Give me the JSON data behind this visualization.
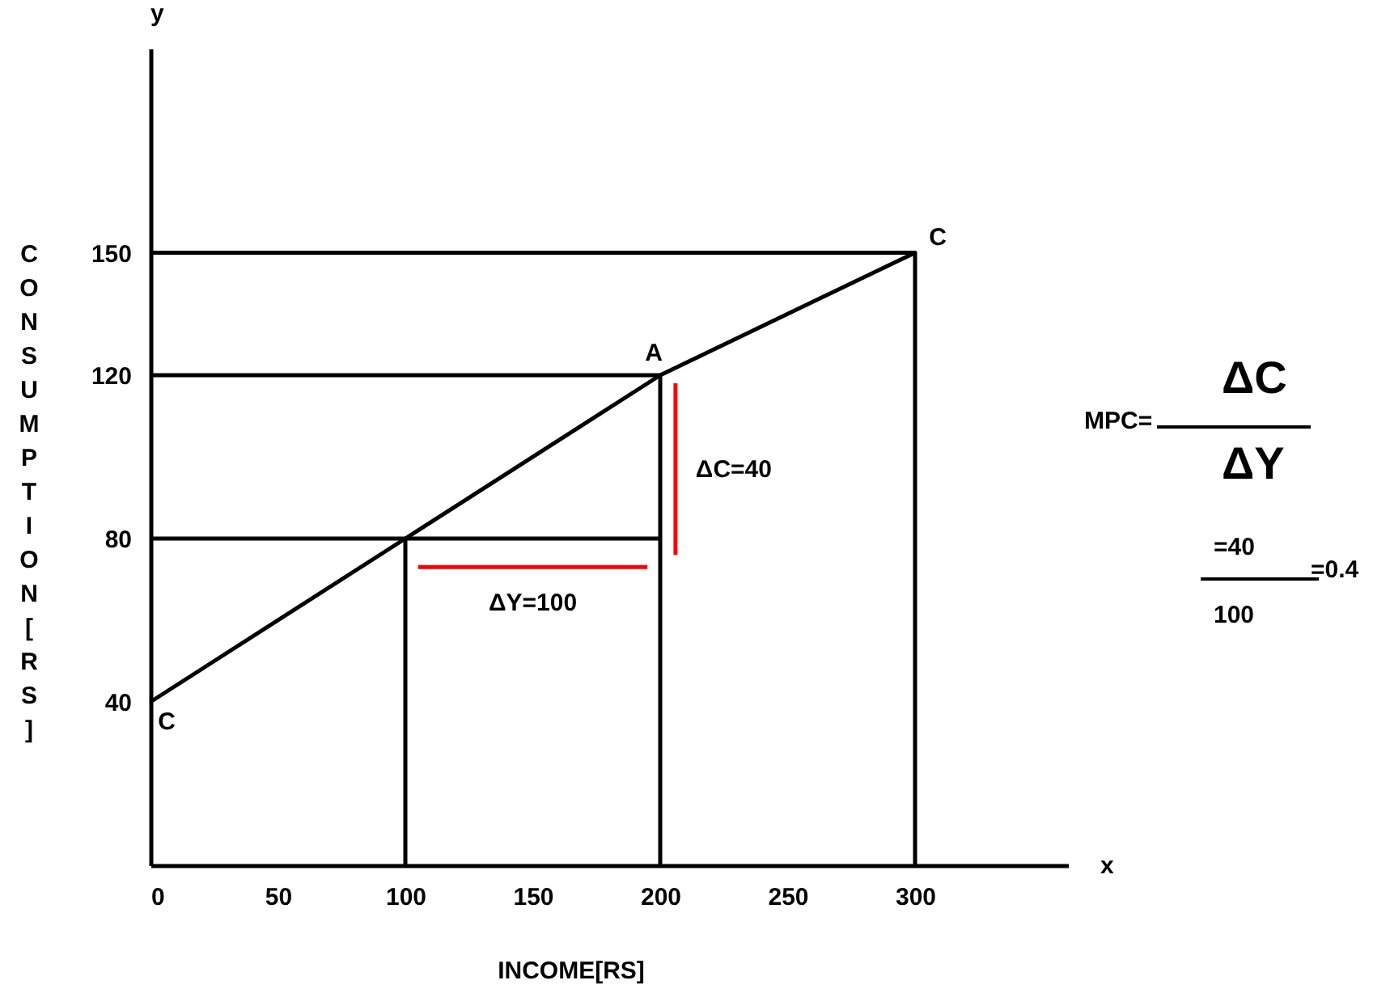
{
  "chart_data": {
    "type": "line",
    "xlabel": "INCOME[RS]",
    "ylabel": "CONSUMPTION[RS]",
    "xlim": [
      0,
      360
    ],
    "ylim": [
      0,
      200
    ],
    "xticks": [
      0,
      50,
      100,
      150,
      200,
      250,
      300
    ],
    "yticks": [
      40,
      80,
      120,
      150
    ],
    "grid": false,
    "marker": "none",
    "line_style": "solid",
    "series": [
      {
        "color": "#000000",
        "x": [
          0,
          100,
          200,
          300
        ],
        "values": [
          40,
          80,
          120,
          150
        ]
      },
      {
        "color": "#000000",
        "x": [
          0,
          300,
          300
        ],
        "values": [
          150,
          150,
          0
        ]
      },
      {
        "color": "#000000",
        "x": [
          0,
          200,
          200
        ],
        "values": [
          120,
          120,
          0
        ]
      },
      {
        "color": "#000000",
        "x": [
          0,
          100,
          100
        ],
        "values": [
          80,
          80,
          0
        ]
      },
      {
        "color": "#000000",
        "x": [
          100,
          200
        ],
        "values": [
          80,
          80
        ]
      },
      {
        "color": "#ff0000",
        "x": [
          105,
          195
        ],
        "values": [
          73,
          73
        ]
      },
      {
        "color": "#ff0000",
        "x": [
          206,
          206
        ],
        "values": [
          76,
          118
        ]
      }
    ],
    "annotations": [
      {
        "text": "C",
        "x": 300,
        "y": 150
      },
      {
        "text": "C",
        "x": 0,
        "y": 40
      },
      {
        "text": "A",
        "x": 200,
        "y": 120
      },
      {
        "text": "ΔY=100",
        "x": 150,
        "y": 73
      },
      {
        "text": "ΔC=40",
        "x": 206,
        "y": 97
      },
      "MPC=",
      "ΔC",
      "ΔY",
      "=40",
      "100",
      "=0.4",
      "x",
      "y"
    ]
  }
}
